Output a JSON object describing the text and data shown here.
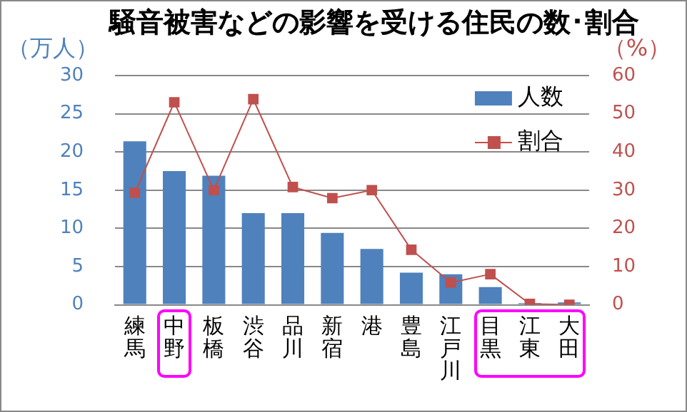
{
  "chart_data": {
    "type": "bar",
    "title": "騒音被害などの影響を受ける住民の数･割合",
    "ylabel": "（万人）",
    "y2label": "（%）",
    "categories": [
      "練馬",
      "中野",
      "板橋",
      "渋谷",
      "品川",
      "新宿",
      "港",
      "豊島",
      "江戸川",
      "目黒",
      "江東",
      "大田"
    ],
    "series": [
      {
        "name": "人数",
        "color": "#4f81bd",
        "values": [
          21.4,
          17.5,
          16.9,
          12.0,
          12.0,
          9.4,
          7.3,
          4.2,
          4.0,
          2.3,
          0.2,
          0.3
        ]
      },
      {
        "name": "割合",
        "type": "line",
        "axis": "y2",
        "color": "#c0504d",
        "marker": "square",
        "values": [
          29.3,
          53,
          30,
          53.8,
          30.8,
          27.9,
          30,
          14.4,
          5.8,
          8.0,
          0.2,
          0
        ]
      }
    ],
    "ylim": [
      0,
      30
    ],
    "yticks": [
      0,
      5,
      10,
      15,
      20,
      25,
      30
    ],
    "y2lim": [
      0,
      60
    ],
    "y2ticks": [
      0,
      10,
      20,
      30,
      40,
      50,
      60
    ],
    "grid": "y",
    "legend": "top right"
  }
}
